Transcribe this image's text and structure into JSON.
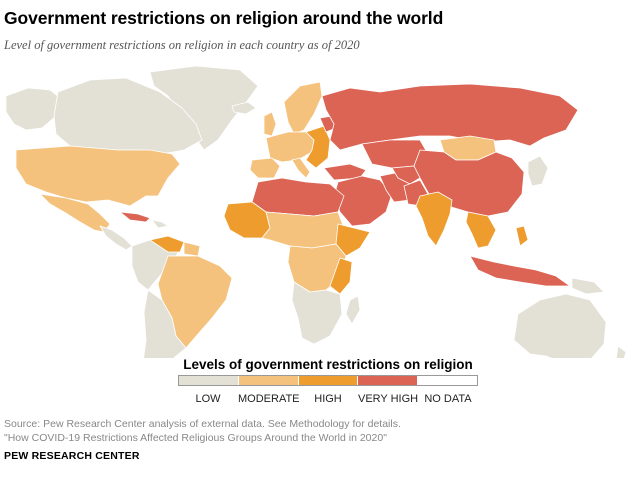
{
  "title": "Government restrictions on religion around the world",
  "subtitle": "Level of government restrictions on religion in each country as of 2020",
  "legend": {
    "title": "Levels of government restrictions on religion",
    "items": [
      {
        "label": "LOW",
        "color": "#e3e0d6"
      },
      {
        "label": "MODERATE",
        "color": "#f5c27d"
      },
      {
        "label": "HIGH",
        "color": "#ef9c2e"
      },
      {
        "label": "VERY HIGH",
        "color": "#dc6454"
      },
      {
        "label": "NO DATA",
        "color": "#ffffff"
      }
    ]
  },
  "colors": {
    "ocean": "#ffffff",
    "border": "#ffffff",
    "low": "#e3e0d6",
    "moderate": "#f5c27d",
    "high": "#ef9c2e",
    "very_high": "#dc6454"
  },
  "source": {
    "line1": "Source: Pew Research Center analysis of external data. See Methodology for details.",
    "line2": "\"How COVID-19 Restrictions Affected Religious Groups Around the World in 2020\""
  },
  "brand": "PEW RESEARCH CENTER"
}
